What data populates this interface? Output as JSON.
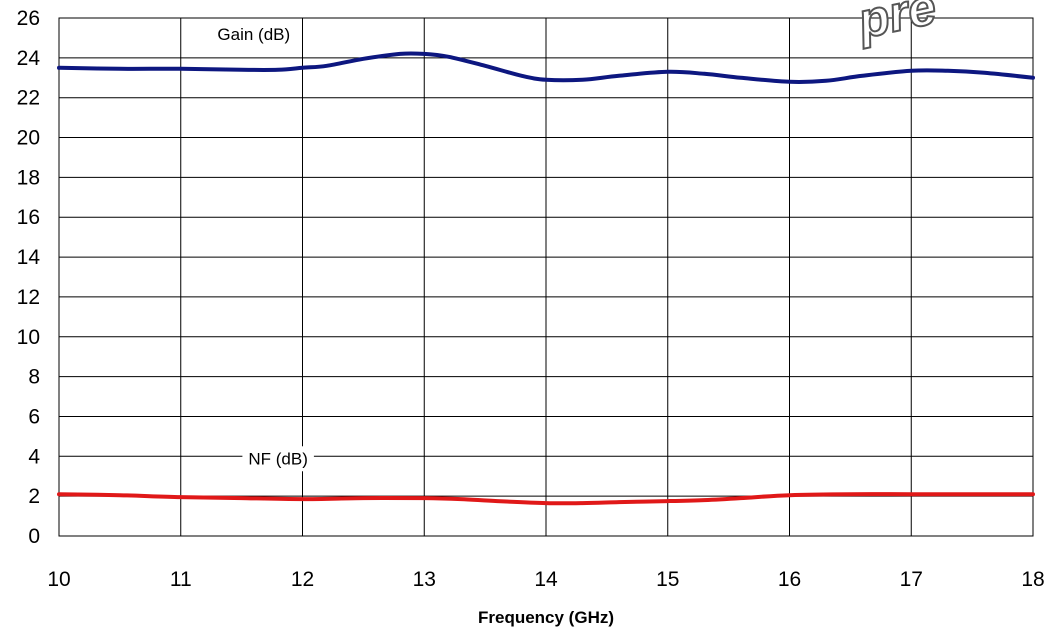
{
  "chart_data": {
    "type": "line",
    "title": "",
    "xlabel": "Frequency (GHz)",
    "ylabel": "",
    "xlim": [
      10,
      18
    ],
    "ylim": [
      0,
      26
    ],
    "x_ticks": [
      10,
      11,
      12,
      13,
      14,
      15,
      16,
      17,
      18
    ],
    "y_ticks": [
      0,
      2,
      4,
      6,
      8,
      10,
      12,
      14,
      16,
      18,
      20,
      22,
      24,
      26
    ],
    "grid": true,
    "series": [
      {
        "name": "Gain (dB)",
        "color": "#0d1780",
        "x": [
          10,
          10.5,
          11,
          11.5,
          11.8,
          12,
          12.2,
          12.5,
          12.8,
          13,
          13.2,
          13.5,
          13.8,
          14,
          14.3,
          14.6,
          15,
          15.3,
          15.6,
          16,
          16.3,
          16.6,
          17,
          17.3,
          17.6,
          18
        ],
        "y": [
          23.5,
          23.45,
          23.45,
          23.4,
          23.4,
          23.5,
          23.6,
          23.95,
          24.2,
          24.2,
          24.05,
          23.6,
          23.1,
          22.9,
          22.9,
          23.1,
          23.3,
          23.2,
          23.0,
          22.8,
          22.85,
          23.1,
          23.35,
          23.35,
          23.25,
          23.0
        ]
      },
      {
        "name": "NF (dB)",
        "color": "#e01818",
        "x": [
          10,
          10.5,
          11,
          11.5,
          12,
          12.5,
          13,
          13.3,
          13.6,
          14,
          14.3,
          14.6,
          15,
          15.3,
          15.6,
          16,
          16.5,
          17,
          17.5,
          18
        ],
        "y": [
          2.1,
          2.05,
          1.95,
          1.9,
          1.85,
          1.9,
          1.9,
          1.85,
          1.75,
          1.65,
          1.65,
          1.7,
          1.75,
          1.8,
          1.9,
          2.05,
          2.1,
          2.1,
          2.1,
          2.1
        ]
      }
    ]
  },
  "stamp": {
    "text": "pre"
  }
}
